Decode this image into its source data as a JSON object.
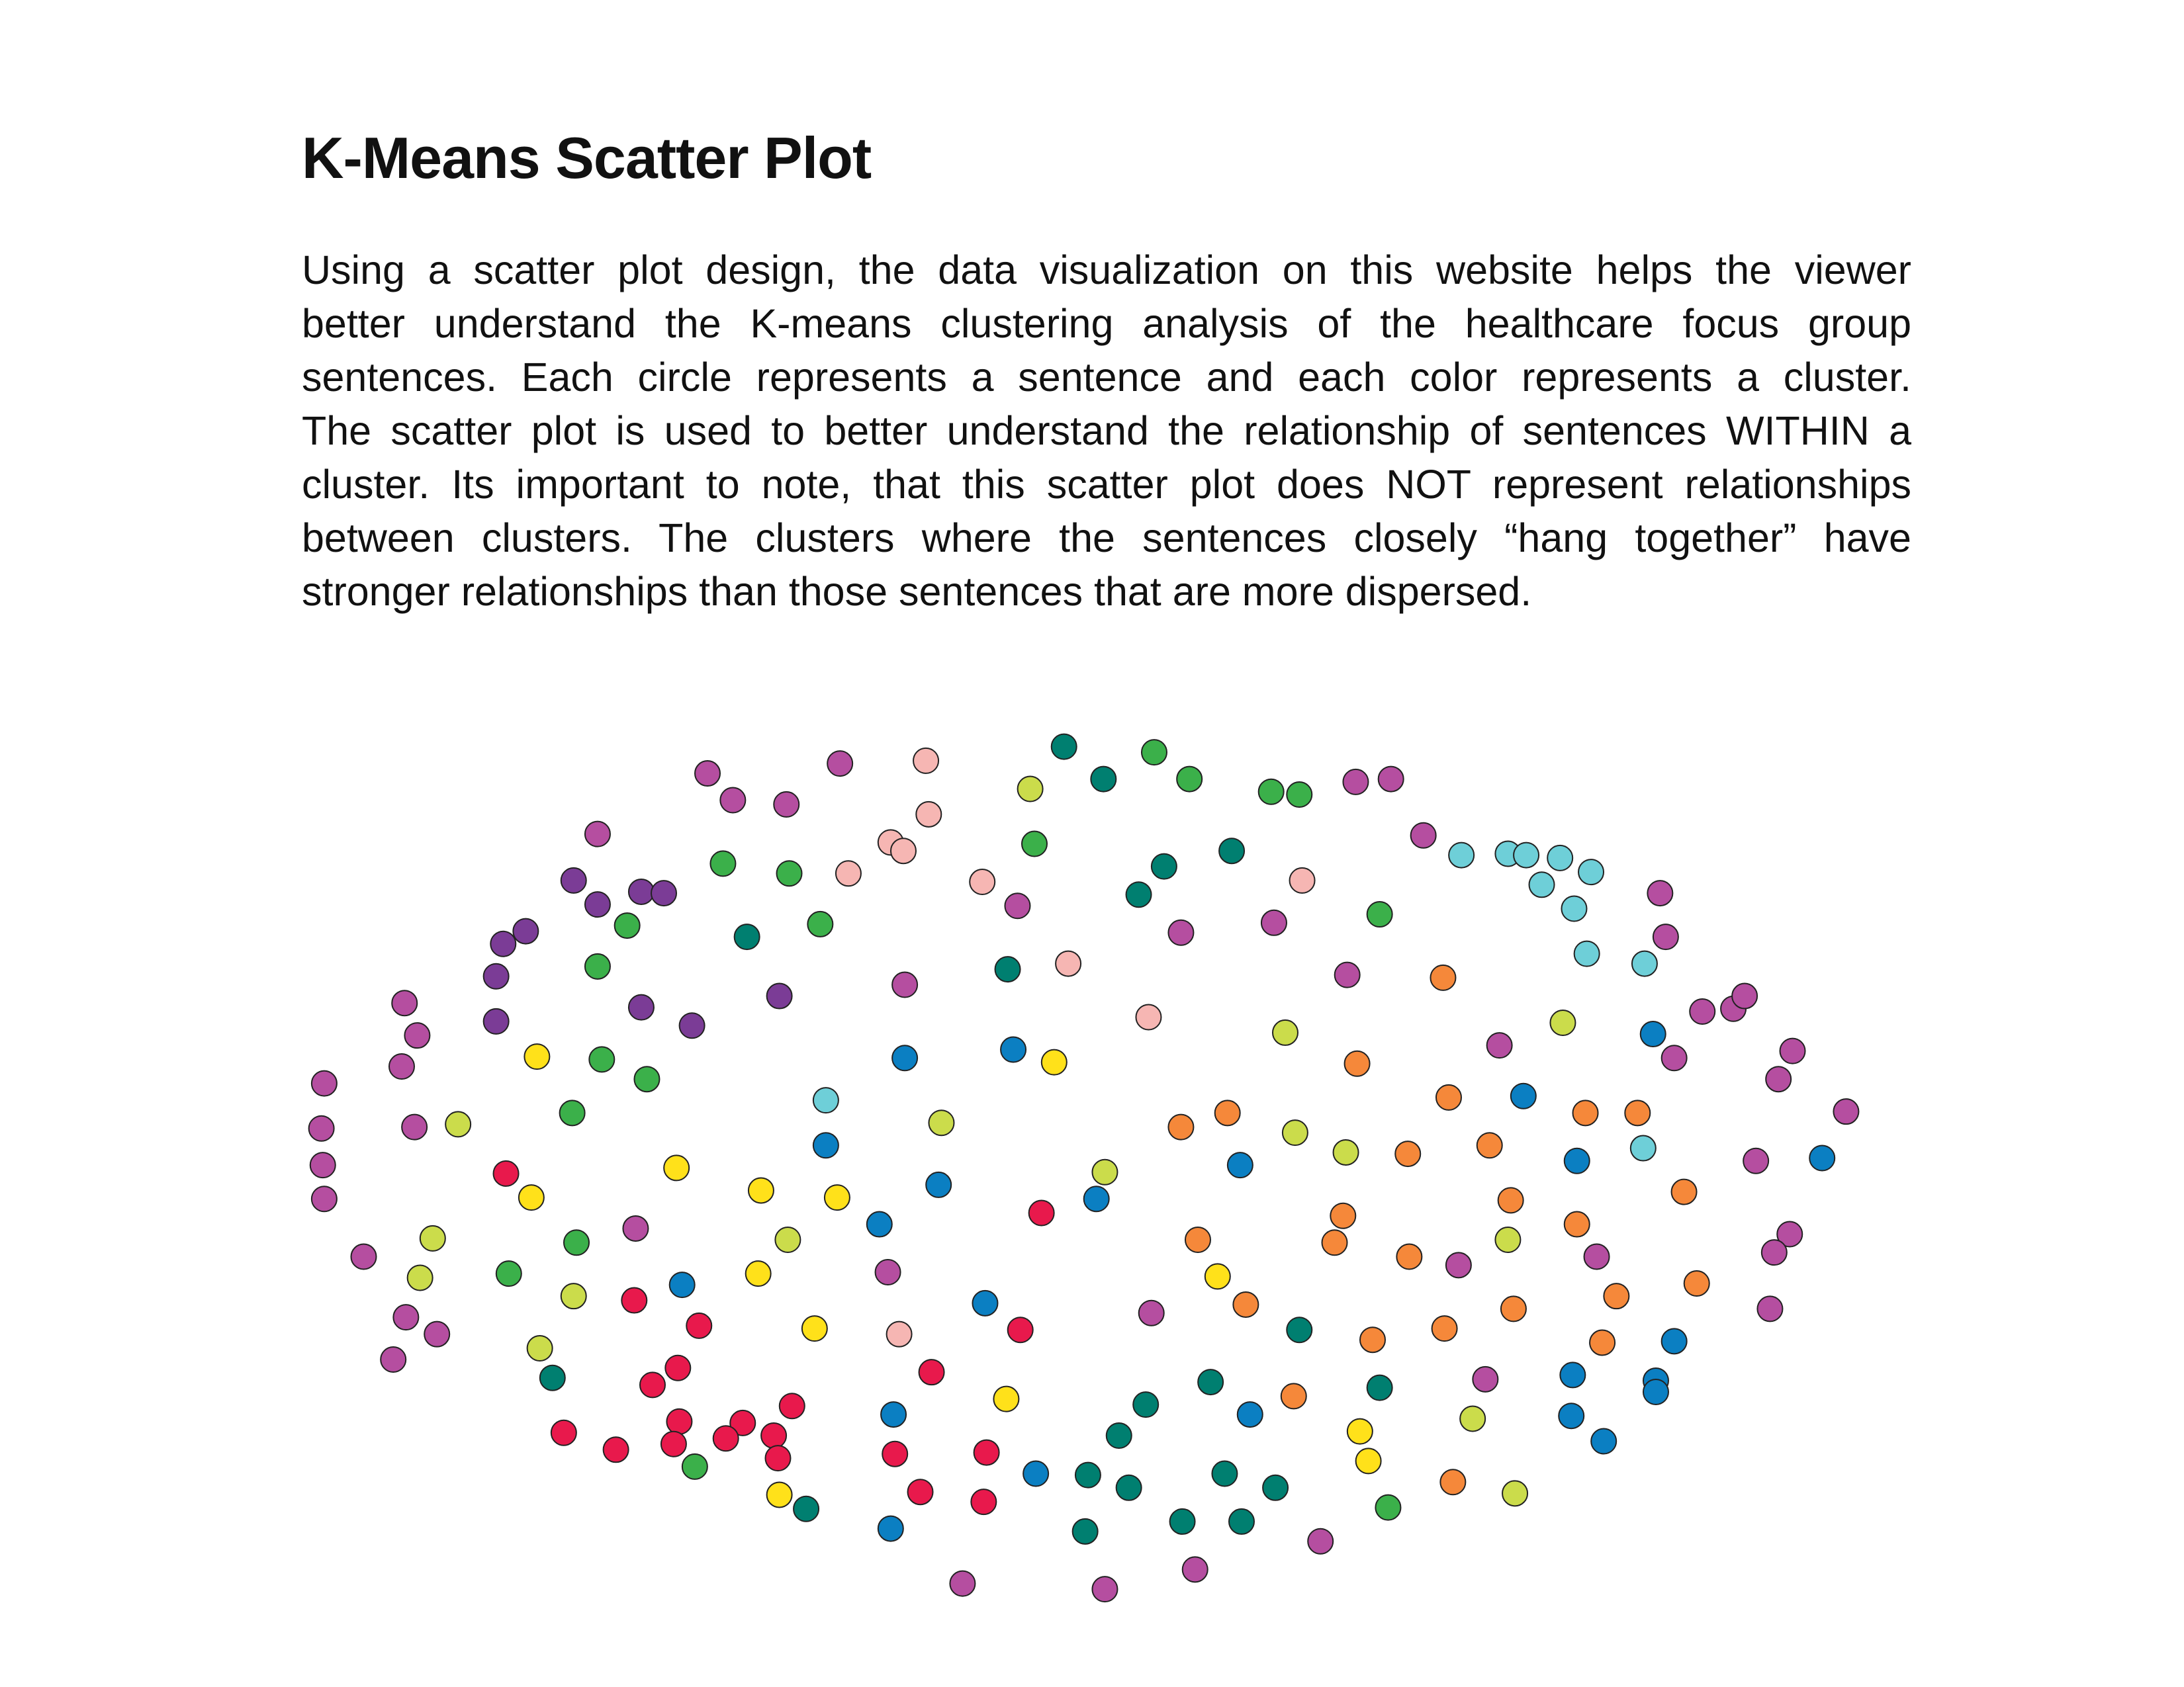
{
  "chart_data": {
    "type": "scatter",
    "title": "K-Means Scatter Plot",
    "description": [
      "Using a scatter plot design, the data visualization on this website helps the viewer",
      "better understand the K-means clustering analysis of the healthcare focus group",
      "sentences.  Each circle represents a sentence and each color represents a cluster.",
      "The scatter plot is used to better understand the relationship of sentences WITHIN a",
      "cluster.  Its important to note, that this scatter plot does NOT represent relationships",
      "between clusters.  The clusters where the sentences closely “hang together” have",
      "stronger relationships than those sentences that are more dispersed."
    ],
    "xlim": [
      200,
      1330
    ],
    "ylim": [
      1150,
      510
    ],
    "series": [
      {
        "color": "#b54ea0",
        "x": [
          502,
          520,
          558,
          596,
          424,
          642,
          722,
          838,
          904,
          962,
          987,
          1010,
          956,
          1178,
          1182,
          1064,
          1208,
          1230,
          1238,
          1188,
          1272,
          1262,
          1310,
          1246,
          1270,
          1259,
          1256,
          1133,
          1035,
          1054,
          937,
          848,
          784,
          683,
          817,
          630,
          451,
          230,
          228,
          229,
          230,
          287,
          296,
          285,
          294,
          258,
          288,
          310,
          279
        ],
        "values": [
          549,
          568,
          571,
          542,
          592,
          699,
          643,
          662,
          655,
          555,
          553,
          593,
          692,
          634,
          665,
          742,
          718,
          716,
          707,
          751,
          746,
          766,
          789,
          824,
          876,
          889,
          929,
          892,
          898,
          979,
          1094,
          1114,
          1128,
          1124,
          932,
          903,
          872,
          769,
          801,
          827,
          851,
          712,
          735,
          757,
          800,
          892,
          935,
          947,
          965
        ]
      },
      {
        "color": "#7b3c96",
        "x": [
          407,
          424,
          455,
          471,
          357,
          373,
          352,
          352,
          455,
          491,
          553
        ],
        "values": [
          625,
          642,
          633,
          634,
          670,
          661,
          693,
          725,
          715,
          728,
          707
        ]
      },
      {
        "color": "#f6b6b3",
        "x": [
          657,
          659,
          632,
          641,
          602,
          697,
          758,
          815,
          924,
          638
        ],
        "values": [
          540,
          578,
          598,
          604,
          620,
          626,
          684,
          722,
          625,
          947
        ]
      },
      {
        "color": "#3bb04a",
        "x": [
          819,
          844,
          902,
          922,
          734,
          513,
          560,
          582,
          445,
          424,
          427,
          459,
          406,
          409,
          361,
          493,
          979,
          985
        ],
        "values": [
          534,
          553,
          562,
          564,
          599,
          613,
          620,
          656,
          657,
          686,
          752,
          766,
          790,
          882,
          904,
          1041,
          649,
          1070
        ]
      },
      {
        "color": "#007f70",
        "x": [
          755,
          783,
          874,
          826,
          808,
          530,
          715,
          922,
          859,
          979,
          813,
          794,
          772,
          801,
          869,
          905,
          881,
          839,
          770,
          572,
          392
        ],
        "values": [
          530,
          553,
          604,
          615,
          635,
          665,
          688,
          944,
          981,
          985,
          997,
          1019,
          1047,
          1056,
          1046,
          1056,
          1080,
          1080,
          1087,
          1071,
          978
        ]
      },
      {
        "color": "#6ecfd8",
        "x": [
          1037,
          1070,
          1083,
          1107,
          1129,
          1094,
          1117,
          1126,
          1167,
          586,
          1166
        ],
        "values": [
          607,
          606,
          607,
          609,
          619,
          628,
          645,
          677,
          684,
          781,
          815
        ]
      },
      {
        "color": "#cbdc4b",
        "x": [
          731,
          912,
          1109,
          668,
          784,
          919,
          955,
          1070,
          559,
          325,
          307,
          298,
          407,
          383,
          1045,
          1075
        ],
        "values": [
          560,
          733,
          726,
          797,
          832,
          804,
          818,
          880,
          880,
          798,
          879,
          907,
          920,
          957,
          1007,
          1060
        ]
      },
      {
        "color": "#ffe11a",
        "x": [
          381,
          748,
          480,
          540,
          594,
          377,
          538,
          578,
          864,
          714,
          965,
          971,
          553
        ],
        "values": [
          750,
          754,
          829,
          845,
          850,
          850,
          904,
          943,
          906,
          993,
          1016,
          1037,
          1061
        ]
      },
      {
        "color": "#0b7fc2",
        "x": [
          642,
          719,
          1081,
          1173,
          586,
          666,
          624,
          778,
          880,
          1119,
          1293,
          484,
          699,
          1188,
          1116,
          1175,
          1175,
          887,
          1115,
          1138,
          735,
          634,
          632
        ],
        "values": [
          751,
          745,
          778,
          734,
          813,
          841,
          869,
          851,
          827,
          824,
          822,
          912,
          925,
          952,
          976,
          980,
          988,
          1004,
          1005,
          1023,
          1046,
          1004,
          1085
        ]
      },
      {
        "color": "#f5883a",
        "x": [
          1024,
          963,
          1028,
          838,
          871,
          1125,
          1162,
          999,
          1057,
          1072,
          1195,
          953,
          947,
          850,
          1000,
          1119,
          1204,
          1147,
          884,
          974,
          1025,
          1074,
          1137,
          918,
          1031
        ],
        "values": [
          694,
          755,
          779,
          800,
          790,
          790,
          790,
          819,
          813,
          852,
          846,
          863,
          882,
          880,
          892,
          869,
          911,
          920,
          926,
          951,
          943,
          929,
          953,
          991,
          1052
        ]
      },
      {
        "color": "#e8194c",
        "x": [
          359,
          739,
          450,
          496,
          724,
          481,
          463,
          661,
          562,
          482,
          527,
          549,
          400,
          437,
          478,
          515,
          552,
          635,
          700,
          653,
          698
        ],
        "values": [
          833,
          861,
          923,
          941,
          944,
          971,
          983,
          974,
          998,
          1009,
          1010,
          1019,
          1017,
          1029,
          1025,
          1021,
          1035,
          1032,
          1031,
          1059,
          1066
        ]
      }
    ]
  }
}
